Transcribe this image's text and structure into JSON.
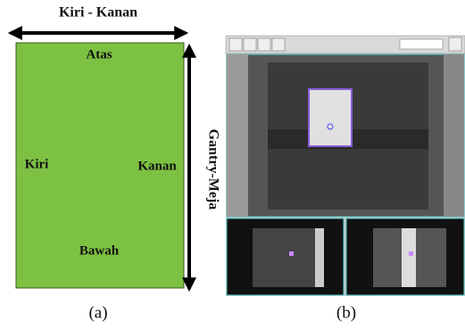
{
  "diagram": {
    "top_arrow_label": "Kiri - Kanan",
    "side_arrow_label": "Gantry-Meja",
    "panel_a": {
      "top": "Atas",
      "left": "Kiri",
      "right": "Kanan",
      "bottom": "Bawah"
    },
    "captions": [
      "(a)",
      "(b)"
    ]
  }
}
